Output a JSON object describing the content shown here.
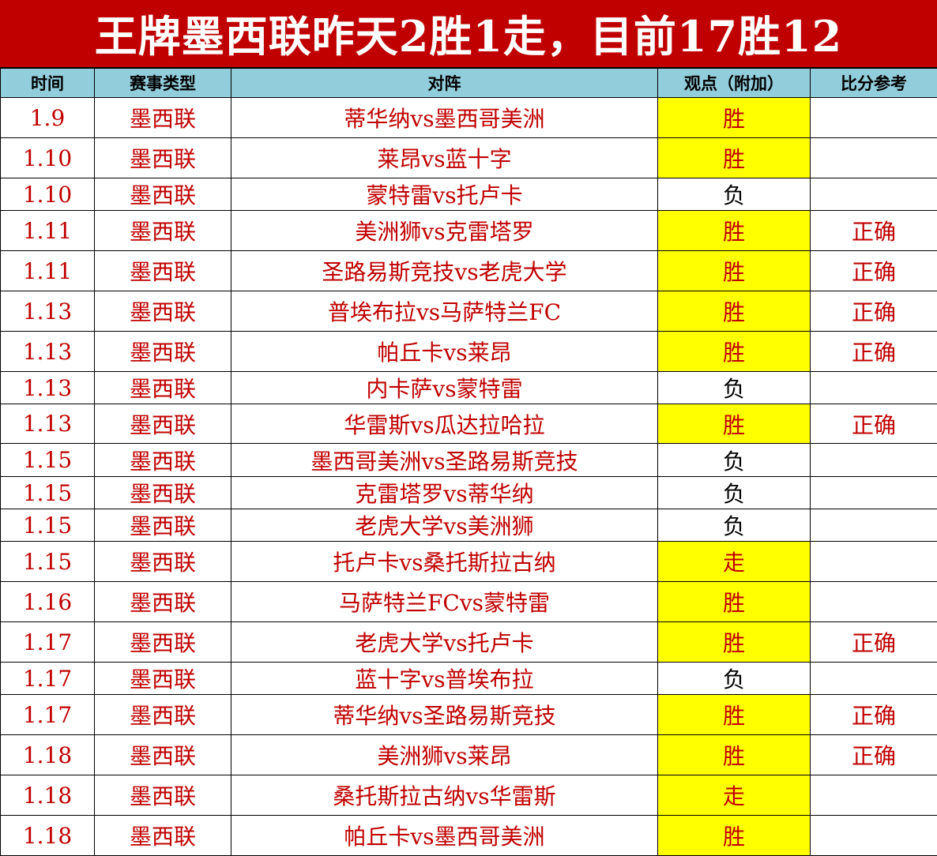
{
  "title": "王牌墨西联昨天2胜1走，目前17胜12",
  "columns": [
    "时间",
    "赛事类型",
    "对阵",
    "观点（附加）",
    "比分参考"
  ],
  "colors": {
    "title_bg": "#c00000",
    "header_bg": "#92cddc",
    "highlight": "#ffff00",
    "text": "#c00000"
  },
  "rows": [
    {
      "date": "1.9",
      "league": "墨西联",
      "match": "蒂华纳vs墨西哥美洲",
      "pick": "胜",
      "highlight": true,
      "note": ""
    },
    {
      "date": "1.10",
      "league": "墨西联",
      "match": "莱昂vs蓝十字",
      "pick": "胜",
      "highlight": true,
      "note": ""
    },
    {
      "date": "1.10",
      "league": "墨西联",
      "match": "蒙特雷vs托卢卡",
      "pick": "负",
      "highlight": false,
      "note": ""
    },
    {
      "date": "1.11",
      "league": "墨西联",
      "match": "美洲狮vs克雷塔罗",
      "pick": "胜",
      "highlight": true,
      "note": "正确"
    },
    {
      "date": "1.11",
      "league": "墨西联",
      "match": "圣路易斯竞技vs老虎大学",
      "pick": "胜",
      "highlight": true,
      "note": "正确"
    },
    {
      "date": "1.13",
      "league": "墨西联",
      "match": "普埃布拉vs马萨特兰FC",
      "pick": "胜",
      "highlight": true,
      "note": "正确"
    },
    {
      "date": "1.13",
      "league": "墨西联",
      "match": "帕丘卡vs莱昂",
      "pick": "胜",
      "highlight": true,
      "note": "正确"
    },
    {
      "date": "1.13",
      "league": "墨西联",
      "match": "内卡萨vs蒙特雷",
      "pick": "负",
      "highlight": false,
      "note": ""
    },
    {
      "date": "1.13",
      "league": "墨西联",
      "match": "华雷斯vs瓜达拉哈拉",
      "pick": "胜",
      "highlight": true,
      "note": "正确"
    },
    {
      "date": "1.15",
      "league": "墨西联",
      "match": "墨西哥美洲vs圣路易斯竞技",
      "pick": "负",
      "highlight": false,
      "note": ""
    },
    {
      "date": "1.15",
      "league": "墨西联",
      "match": "克雷塔罗vs蒂华纳",
      "pick": "负",
      "highlight": false,
      "note": ""
    },
    {
      "date": "1.15",
      "league": "墨西联",
      "match": "老虎大学vs美洲狮",
      "pick": "负",
      "highlight": false,
      "note": ""
    },
    {
      "date": "1.15",
      "league": "墨西联",
      "match": "托卢卡vs桑托斯拉古纳",
      "pick": "走",
      "highlight": true,
      "note": ""
    },
    {
      "date": "1.16",
      "league": "墨西联",
      "match": "马萨特兰FCvs蒙特雷",
      "pick": "胜",
      "highlight": true,
      "note": ""
    },
    {
      "date": "1.17",
      "league": "墨西联",
      "match": "老虎大学vs托卢卡",
      "pick": "胜",
      "highlight": true,
      "note": "正确"
    },
    {
      "date": "1.17",
      "league": "墨西联",
      "match": "蓝十字vs普埃布拉",
      "pick": "负",
      "highlight": false,
      "note": ""
    },
    {
      "date": "1.17",
      "league": "墨西联",
      "match": "蒂华纳vs圣路易斯竞技",
      "pick": "胜",
      "highlight": true,
      "note": "正确"
    },
    {
      "date": "1.18",
      "league": "墨西联",
      "match": "美洲狮vs莱昂",
      "pick": "胜",
      "highlight": true,
      "note": "正确"
    },
    {
      "date": "1.18",
      "league": "墨西联",
      "match": "桑托斯拉古纳vs华雷斯",
      "pick": "走",
      "highlight": true,
      "note": ""
    },
    {
      "date": "1.18",
      "league": "墨西联",
      "match": "帕丘卡vs墨西哥美洲",
      "pick": "胜",
      "highlight": true,
      "note": ""
    }
  ]
}
